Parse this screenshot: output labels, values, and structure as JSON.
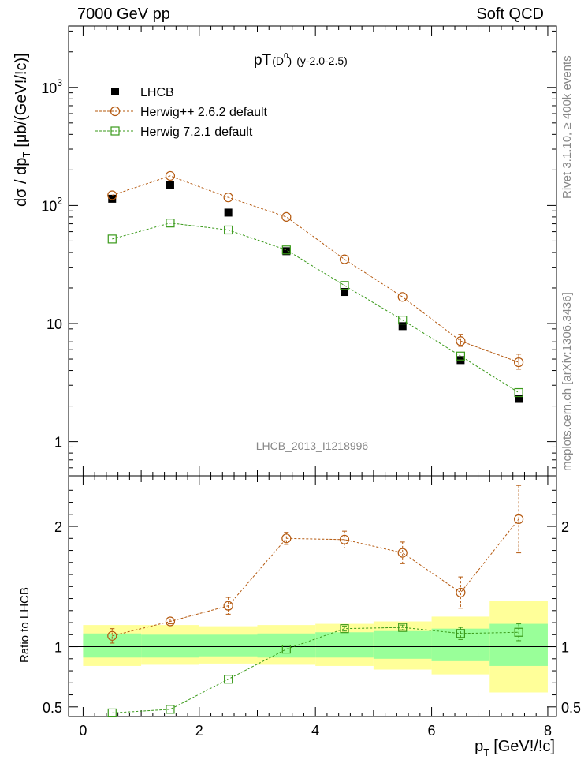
{
  "header": {
    "left": "7000 GeV pp",
    "right": "Soft QCD"
  },
  "side_texts": {
    "rivet": "Rivet 3.1.10, ≥ 400k events",
    "mcplots": "mcplots.cern.ch [arXiv:1306.3436]"
  },
  "chart_data": {
    "type": "scatter",
    "title_main": "pT",
    "title_sub": "(D",
    "title_sup": "0",
    "title_close": ")",
    "title_rapidity": "(y-2.0-2.5)",
    "analysis_id": "LHCB_2013_I1218996",
    "ylabel": "dσ / dp",
    "ylabel_sub": "T",
    "ylabel_units": "[μb/(GeV!/!c)]",
    "ratio_ylabel": "Ratio to LHCB",
    "xlabel": "p",
    "xlabel_sub": "T",
    "xlabel_units": "[GeV!/!c]",
    "xlim": [
      -0.25,
      8.15
    ],
    "ylim_main_log10": [
      -0.29,
      3.52
    ],
    "ylim_ratio": [
      0.42,
      2.42
    ],
    "xticks": [
      "0",
      "2",
      "4",
      "6",
      "8"
    ],
    "main_yticks": [
      {
        "label": "1",
        "sup": "",
        "value": 1
      },
      {
        "label": "10",
        "sup": "",
        "value": 10
      },
      {
        "label": "10",
        "sup": "2",
        "value": 100
      },
      {
        "label": "10",
        "sup": "3",
        "value": 1000
      }
    ],
    "ratio_yticks": [
      {
        "label": "0.5",
        "value": 0.5
      },
      {
        "label": "1",
        "value": 1
      },
      {
        "label": "2",
        "value": 2
      }
    ],
    "bin_edges": [
      0,
      1,
      2,
      3,
      4,
      5,
      6,
      7,
      8
    ],
    "x": [
      0.5,
      1.5,
      2.5,
      3.5,
      4.5,
      5.5,
      6.5,
      7.5
    ],
    "legend": [
      {
        "name": "LHCB",
        "marker": "square-filled",
        "color": "#000000"
      },
      {
        "name": "Herwig++ 2.6.2 default",
        "marker": "circle-open",
        "color": "#b4580e"
      },
      {
        "name": "Herwig 7.2.1 default",
        "marker": "square-open",
        "color": "#3a9a1a"
      }
    ],
    "series": [
      {
        "name": "LHCB",
        "values": [
          114,
          148,
          87,
          41,
          18.5,
          9.5,
          4.9,
          2.3
        ]
      },
      {
        "name": "Herwig++ 2.6.2 default",
        "values": [
          122,
          178,
          117,
          80,
          35,
          16.8,
          7.1,
          4.7
        ],
        "err_low": [
          0,
          0,
          0,
          0,
          0,
          0,
          0.7,
          0.6
        ],
        "err_high": [
          0,
          0,
          0,
          0,
          0,
          0,
          1.0,
          0.8
        ]
      },
      {
        "name": "Herwig 7.2.1 default",
        "values": [
          52,
          71,
          62,
          42,
          21,
          10.7,
          5.3,
          2.6
        ]
      }
    ],
    "ratio_series": [
      {
        "name": "Herwig++ 2.6.2 default",
        "values": [
          1.09,
          1.21,
          1.34,
          1.9,
          1.89,
          1.78,
          1.45,
          2.06
        ],
        "err_low": [
          0.06,
          0.02,
          0.07,
          0.05,
          0.07,
          0.09,
          0.13,
          0.28
        ],
        "err_high": [
          0.06,
          0.02,
          0.07,
          0.05,
          0.07,
          0.09,
          0.13,
          0.28
        ]
      },
      {
        "name": "Herwig 7.2.1 default",
        "values": [
          0.45,
          0.48,
          0.73,
          0.98,
          1.15,
          1.16,
          1.11,
          1.12
        ],
        "err_low": [
          0,
          0,
          0,
          0,
          0.02,
          0.02,
          0.05,
          0.07
        ],
        "err_high": [
          0,
          0,
          0,
          0,
          0.02,
          0.02,
          0.05,
          0.07
        ]
      }
    ],
    "ratio_bands": {
      "yellow_low": [
        0.84,
        0.85,
        0.86,
        0.85,
        0.84,
        0.81,
        0.77,
        0.62
      ],
      "yellow_high": [
        1.18,
        1.18,
        1.17,
        1.18,
        1.19,
        1.21,
        1.25,
        1.38
      ],
      "green_low": [
        0.91,
        0.91,
        0.92,
        0.91,
        0.91,
        0.9,
        0.88,
        0.84
      ],
      "green_high": [
        1.11,
        1.1,
        1.1,
        1.11,
        1.12,
        1.13,
        1.15,
        1.19
      ]
    },
    "colors": {
      "band_yellow": "#ffff99",
      "band_green": "#99ff99",
      "herwigpp": "#b4580e",
      "herwig7": "#3a9a1a"
    }
  }
}
